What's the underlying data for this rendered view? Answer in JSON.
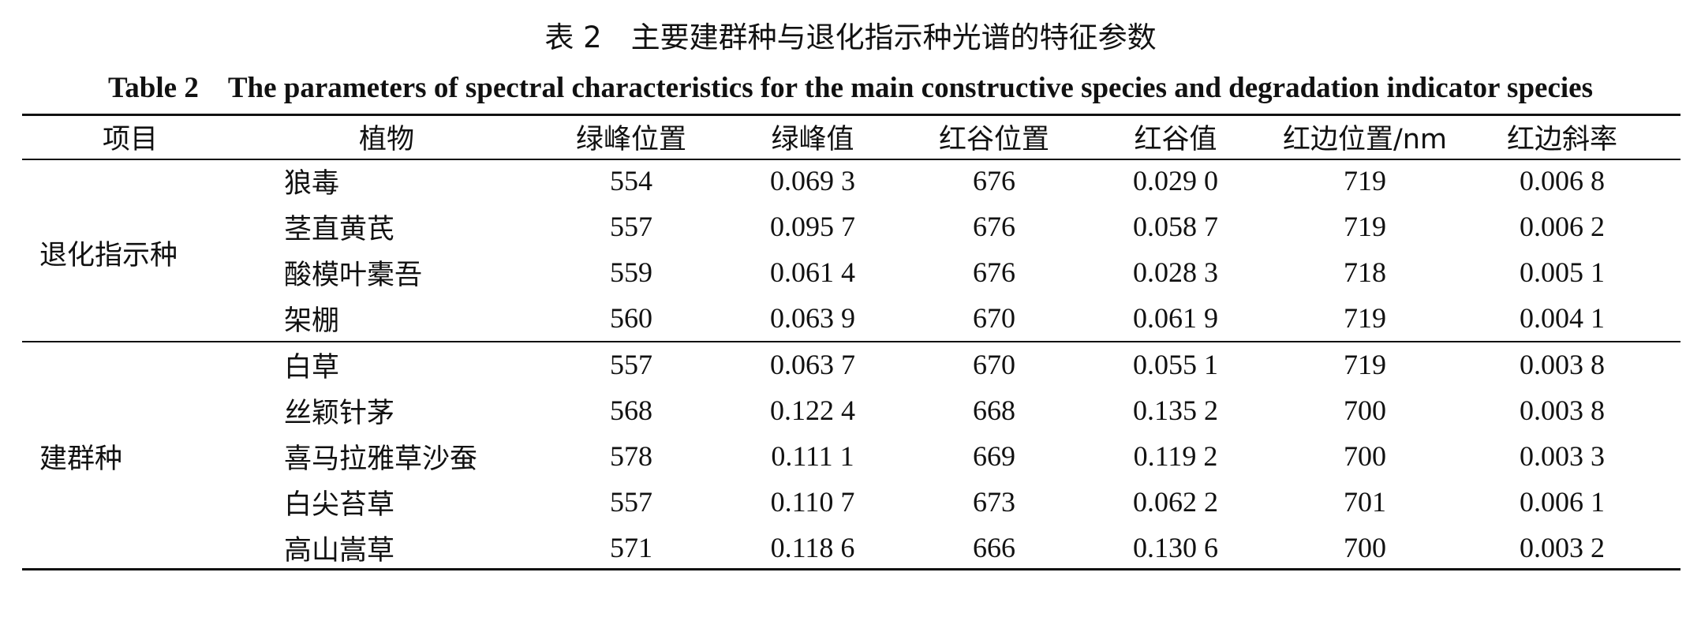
{
  "table": {
    "caption_zh": "表 2　主要建群种与退化指示种光谱的特征参数",
    "caption_en": "Table 2　The parameters of spectral characteristics for the main constructive species and degradation indicator species",
    "headers": [
      "项目",
      "植物",
      "绿峰位置",
      "绿峰值",
      "红谷位置",
      "红谷值",
      "红边位置/nm",
      "红边斜率"
    ],
    "groups": [
      {
        "label": "退化指示种",
        "rows": [
          [
            "狼毒",
            "554",
            "0.069 3",
            "676",
            "0.029 0",
            "719",
            "0.006 8"
          ],
          [
            "茎直黄芪",
            "557",
            "0.095 7",
            "676",
            "0.058 7",
            "719",
            "0.006 2"
          ],
          [
            "酸模叶橐吾",
            "559",
            "0.061 4",
            "676",
            "0.028 3",
            "718",
            "0.005 1"
          ],
          [
            "架棚",
            "560",
            "0.063 9",
            "670",
            "0.061 9",
            "719",
            "0.004 1"
          ]
        ]
      },
      {
        "label": "建群种",
        "rows": [
          [
            "白草",
            "557",
            "0.063 7",
            "670",
            "0.055 1",
            "719",
            "0.003 8"
          ],
          [
            "丝颖针茅",
            "568",
            "0.122 4",
            "668",
            "0.135 2",
            "700",
            "0.003 8"
          ],
          [
            "喜马拉雅草沙蚕",
            "578",
            "0.111 1",
            "669",
            "0.119 2",
            "700",
            "0.003 3"
          ],
          [
            "白尖苔草",
            "557",
            "0.110 7",
            "673",
            "0.062 2",
            "701",
            "0.006 1"
          ],
          [
            "高山嵩草",
            "571",
            "0.118 6",
            "666",
            "0.130 6",
            "700",
            "0.003 2"
          ]
        ]
      }
    ]
  }
}
